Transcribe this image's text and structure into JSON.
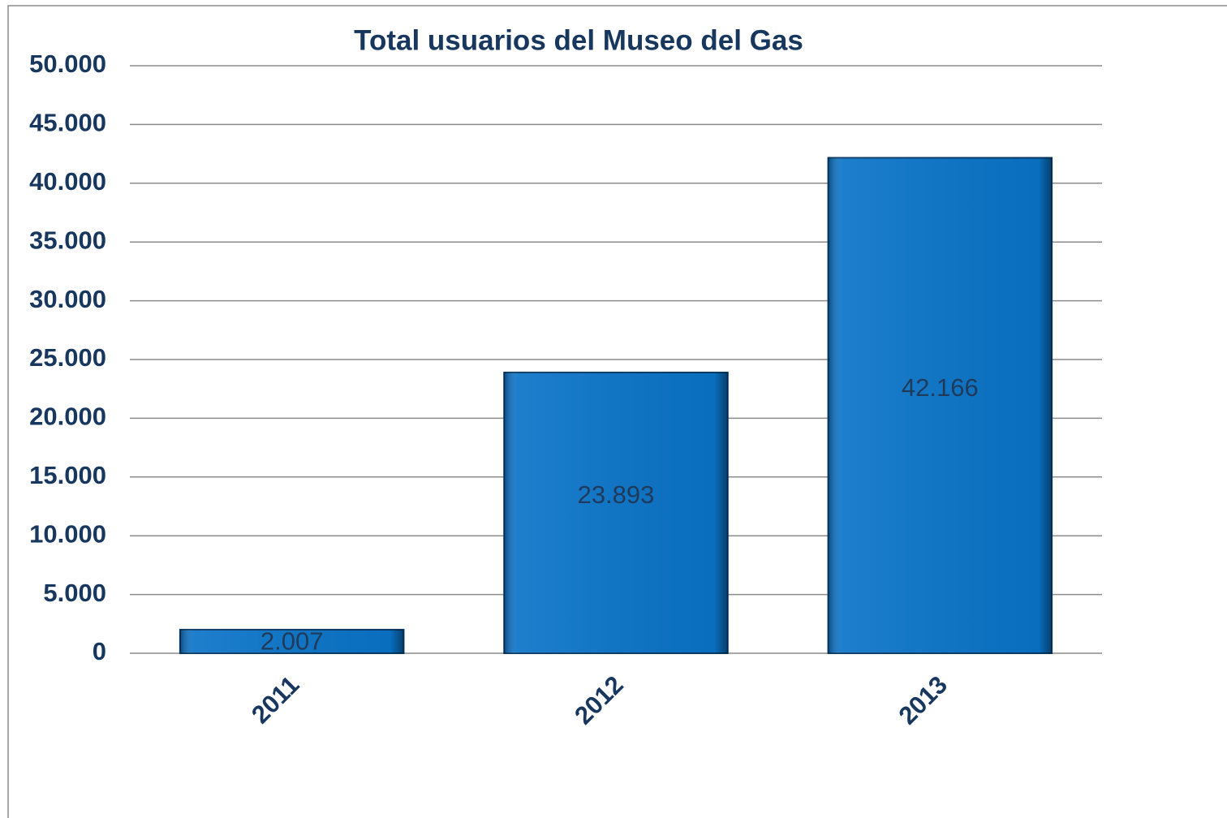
{
  "chart_data": {
    "type": "bar",
    "title": "Total usuarios del Museo del Gas",
    "categories": [
      "2011",
      "2012",
      "2013"
    ],
    "values": [
      2007,
      23893,
      42166
    ],
    "value_labels": [
      "2.007",
      "23.893",
      "42.166"
    ],
    "color": "#0a74c8",
    "ylim": [
      0,
      50000
    ],
    "yticks": [
      0,
      {
        "value": 5000,
        "label": "5.000"
      },
      {
        "value": 10000,
        "label": "10.000"
      },
      {
        "value": 15000,
        "label": "15.000"
      },
      {
        "value": 20000,
        "label": "20.000"
      },
      {
        "value": 25000,
        "label": "25.000"
      },
      {
        "value": 30000,
        "label": "30.000"
      },
      {
        "value": 35000,
        "label": "35.000"
      },
      {
        "value": 40000,
        "label": "40.000"
      },
      {
        "value": 45000,
        "label": "45.000"
      },
      {
        "value": 50000,
        "label": "50.000"
      }
    ],
    "grid": true
  }
}
